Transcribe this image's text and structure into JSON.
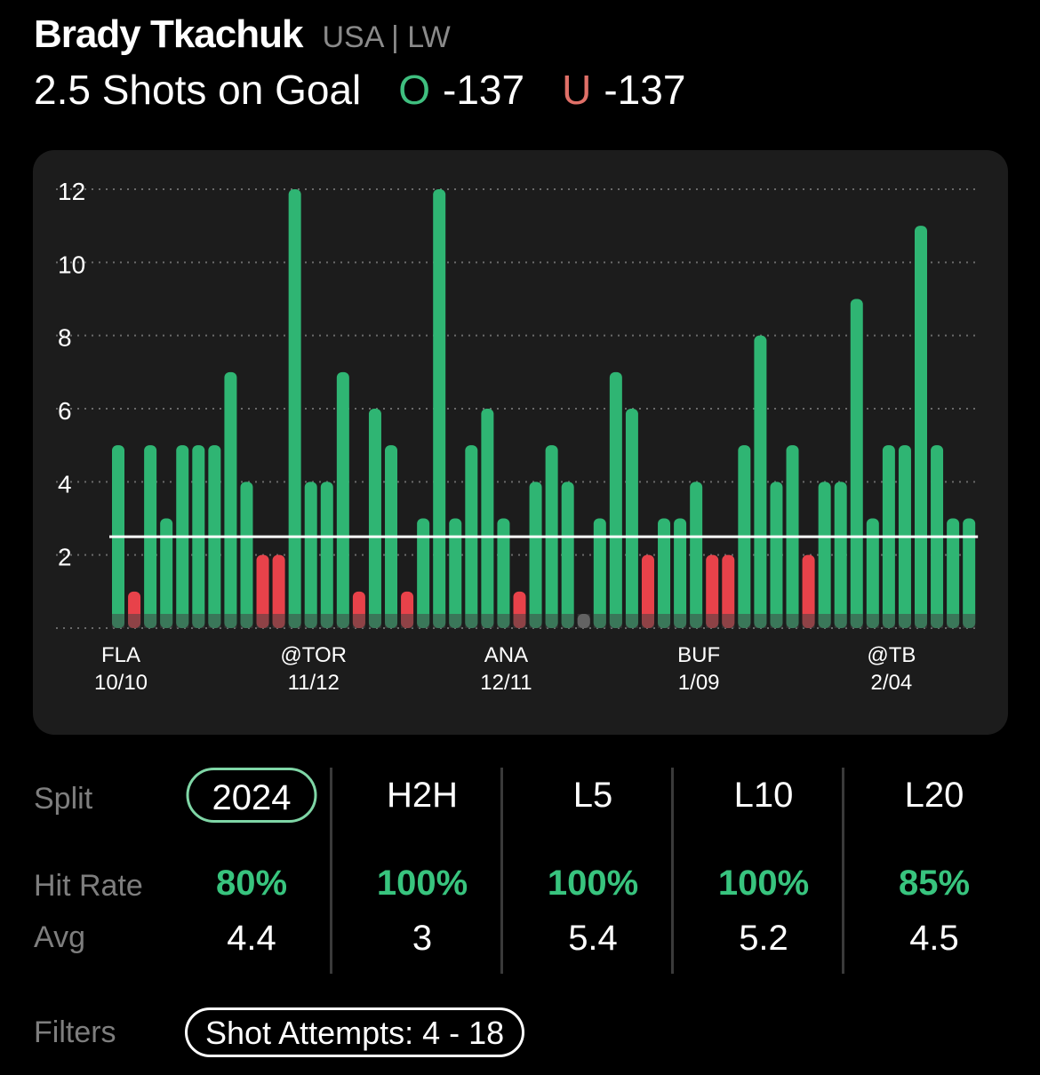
{
  "player": {
    "name": "Brady Tkachuk",
    "meta": "USA | LW"
  },
  "line": {
    "label": "2.5 Shots on Goal",
    "threshold": 2.5,
    "over": {
      "letter": "O",
      "odds": "-137",
      "color": "#3fbf7f"
    },
    "under": {
      "letter": "U",
      "odds": "-137",
      "color": "#e07068"
    }
  },
  "chart_data": {
    "type": "bar",
    "title": "",
    "ylim": [
      0,
      12
    ],
    "y_ticks": [
      "2",
      "4",
      "6",
      "8",
      "10",
      "12"
    ],
    "values": [
      5,
      1,
      5,
      3,
      5,
      5,
      5,
      7,
      4,
      2,
      2,
      12,
      4,
      4,
      7,
      1,
      6,
      5,
      1,
      3,
      12,
      3,
      5,
      6,
      3,
      1,
      4,
      5,
      4,
      0,
      3,
      7,
      6,
      2,
      3,
      3,
      4,
      2,
      2,
      5,
      8,
      4,
      5,
      2,
      4,
      4,
      9,
      3,
      5,
      5,
      11,
      5,
      3,
      3
    ],
    "colors": {
      "over": "#2fb573",
      "under": "#e8424a",
      "push": "#8a8a8a",
      "baseline_band": "#444444",
      "line": "#ffffff"
    },
    "x_labels": [
      {
        "team": "FLA",
        "date": "10/10",
        "index": 0
      },
      {
        "team": "@TOR",
        "date": "11/12",
        "index": 12
      },
      {
        "team": "ANA",
        "date": "12/11",
        "index": 24
      },
      {
        "team": "BUF",
        "date": "1/09",
        "index": 36
      },
      {
        "team": "@TB",
        "date": "2/04",
        "index": 48
      }
    ]
  },
  "splits": {
    "split_label": "Split",
    "hit_label": "Hit Rate",
    "avg_label": "Avg",
    "columns": [
      {
        "name": "2024",
        "hit_rate": "80%",
        "avg": "4.4",
        "active": true
      },
      {
        "name": "H2H",
        "hit_rate": "100%",
        "avg": "3",
        "active": false
      },
      {
        "name": "L5",
        "hit_rate": "100%",
        "avg": "5.4",
        "active": false
      },
      {
        "name": "L10",
        "hit_rate": "100%",
        "avg": "5.2",
        "active": false
      },
      {
        "name": "L20",
        "hit_rate": "85%",
        "avg": "4.5",
        "active": false
      }
    ]
  },
  "filters": {
    "label": "Filters",
    "chip": "Shot Attempts: 4 - 18"
  }
}
